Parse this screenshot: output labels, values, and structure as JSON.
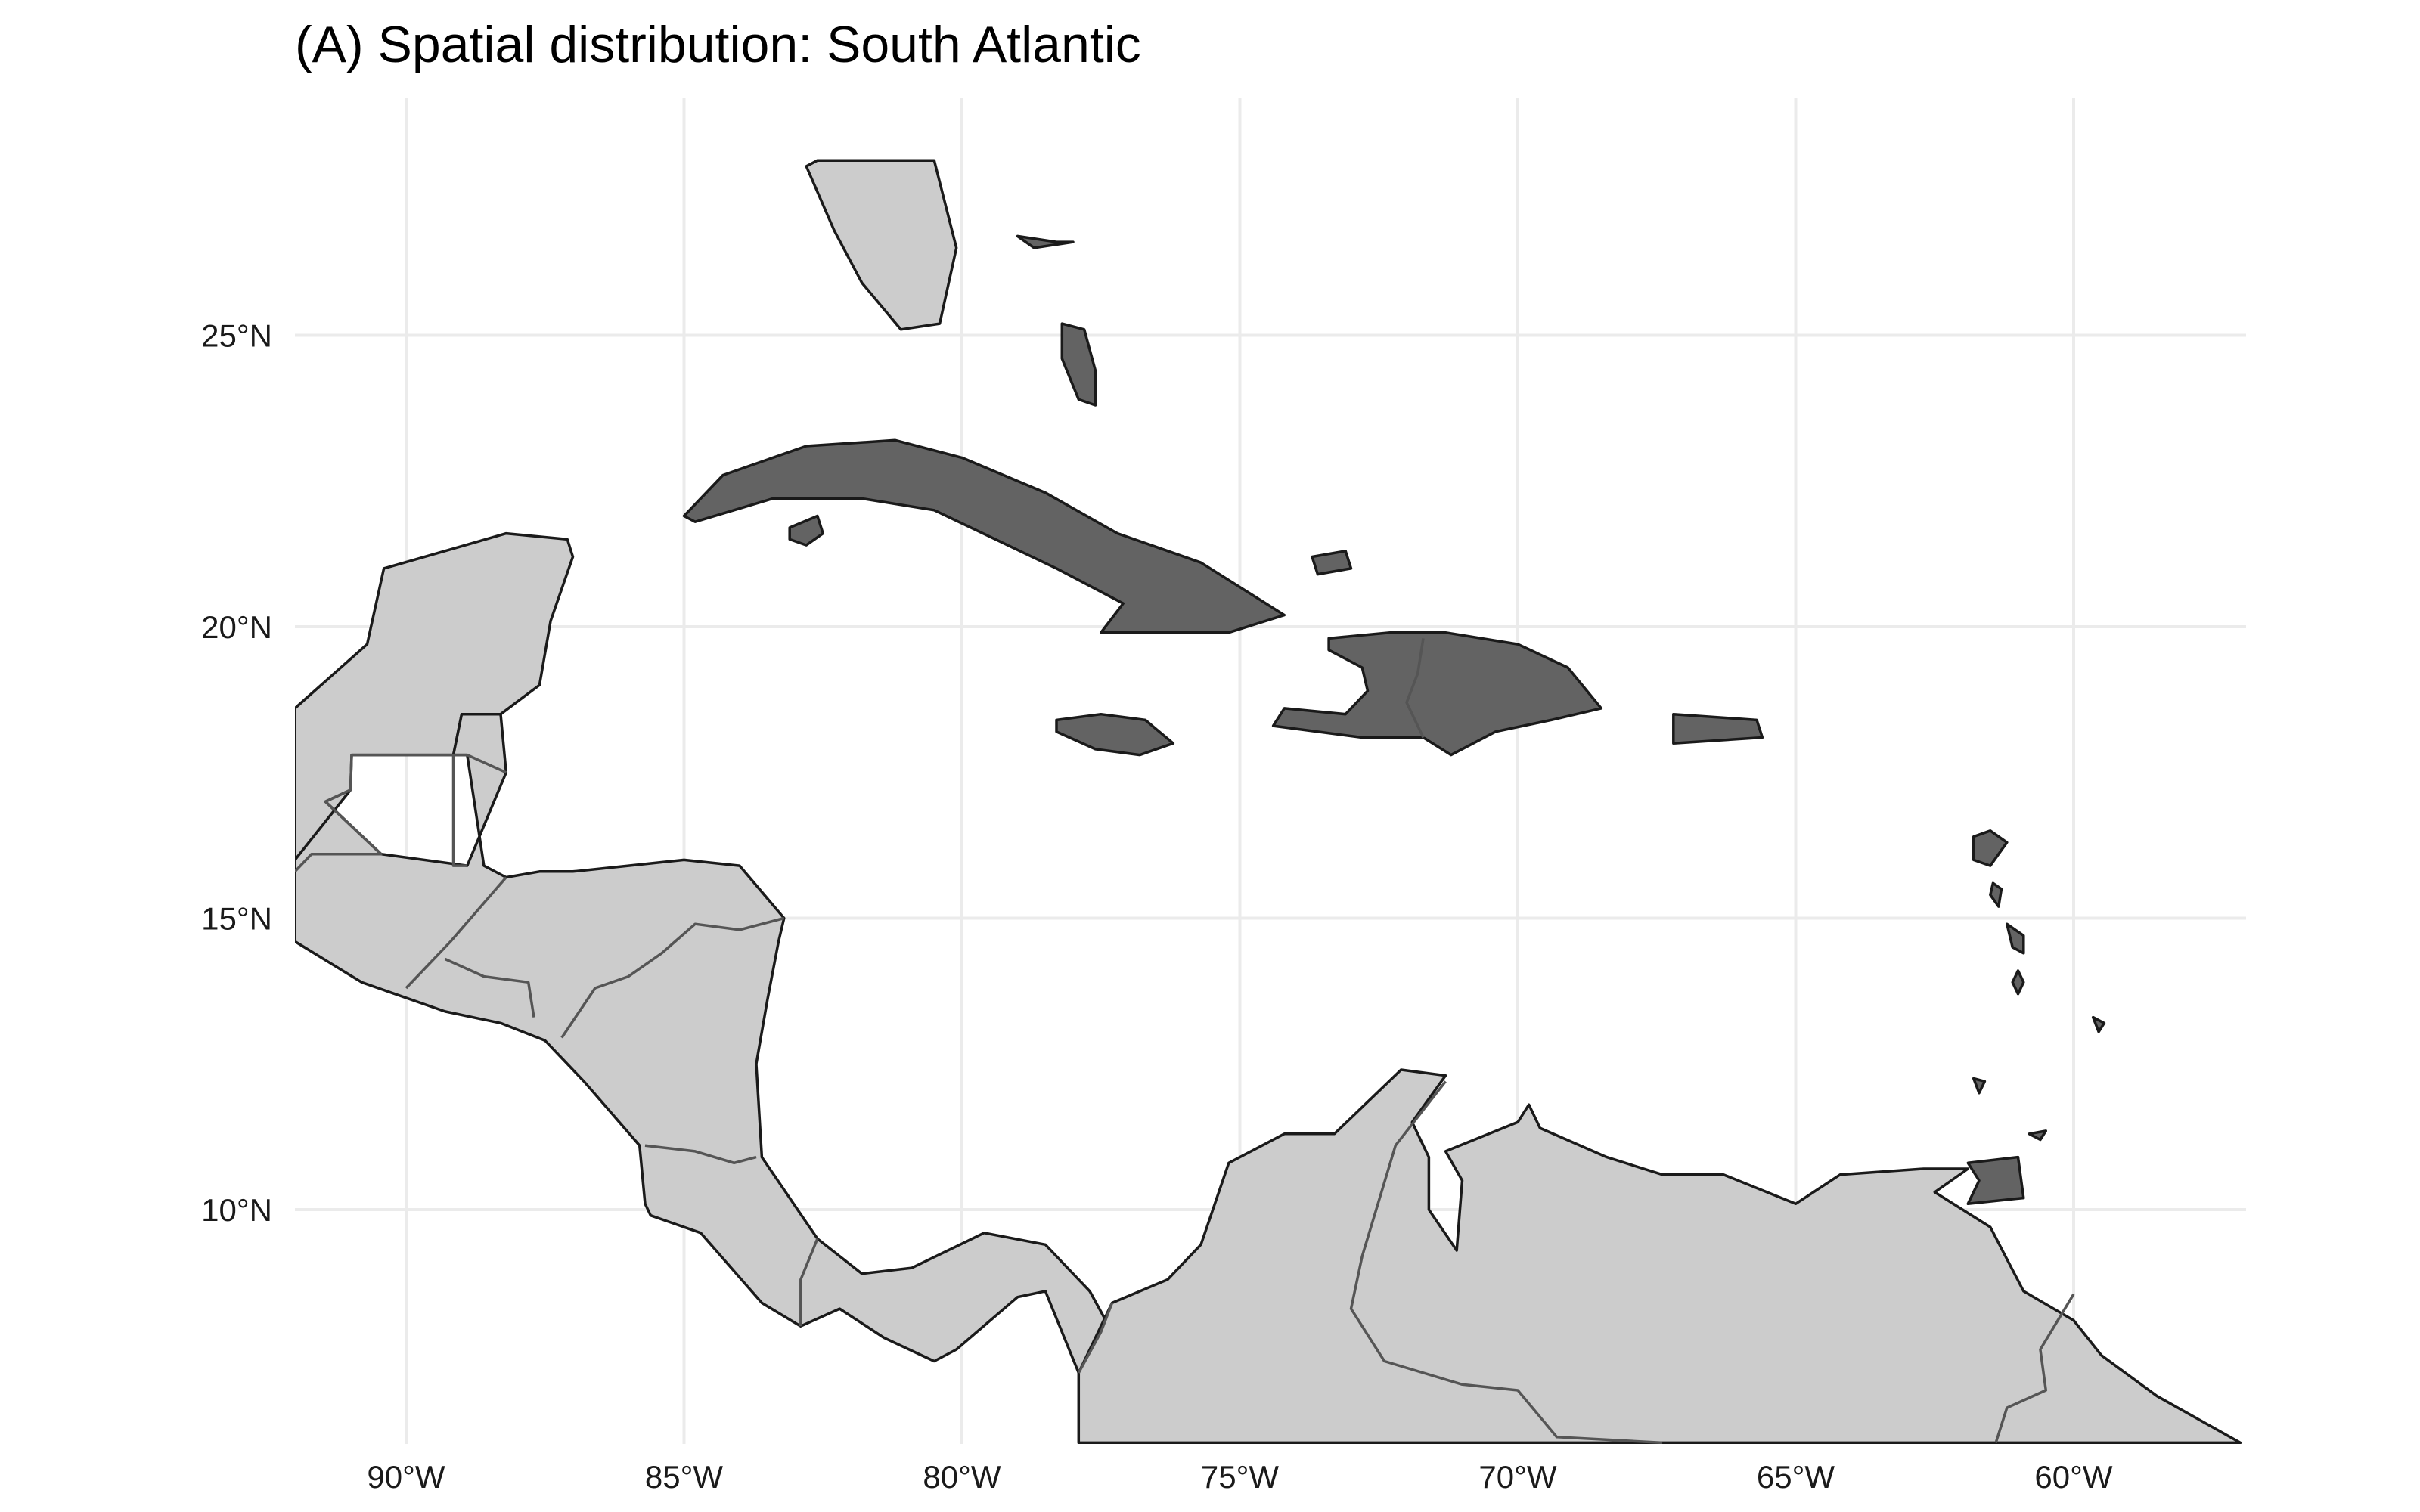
{
  "title": "(A) Spatial distribution: South Atlantic",
  "map": {
    "projection": "longitude-latitude",
    "lon_range": [
      -92,
      -57
    ],
    "lat_range": [
      6,
      28
    ],
    "grid": true,
    "lon_ticks": [
      {
        "value": -90,
        "label": "90°W"
      },
      {
        "value": -85,
        "label": "85°W"
      },
      {
        "value": -80,
        "label": "80°W"
      },
      {
        "value": -75,
        "label": "75°W"
      },
      {
        "value": -70,
        "label": "70°W"
      },
      {
        "value": -65,
        "label": "65°W"
      },
      {
        "value": -60,
        "label": "60°W"
      }
    ],
    "lat_ticks": [
      {
        "value": 25,
        "label": "25°N"
      },
      {
        "value": 20,
        "label": "20°N"
      },
      {
        "value": 15,
        "label": "15°N"
      },
      {
        "value": 10,
        "label": "10°N"
      }
    ],
    "colors": {
      "highlight": "#636363",
      "context": "#cccccc",
      "outline": "#1a1a1a",
      "grid": "#ebebeb",
      "background": "#ffffff"
    },
    "highlighted_regions": [
      {
        "id": "cuba",
        "name": "Cuba",
        "outline": [
          [
            -85,
            21.9
          ],
          [
            -84.3,
            22.6
          ],
          [
            -82.8,
            23.1
          ],
          [
            -81.2,
            23.2
          ],
          [
            -80,
            22.9
          ],
          [
            -78.5,
            22.3
          ],
          [
            -77.2,
            21.6
          ],
          [
            -75.7,
            21.1
          ],
          [
            -74.2,
            20.2
          ],
          [
            -75.2,
            19.9
          ],
          [
            -77.5,
            19.9
          ],
          [
            -77.1,
            20.4
          ],
          [
            -78.3,
            21
          ],
          [
            -80.5,
            22
          ],
          [
            -81.8,
            22.2
          ],
          [
            -83.4,
            22.2
          ],
          [
            -84.8,
            21.8
          ]
        ]
      },
      {
        "id": "isla-de-la-juventud",
        "name": "Isla de la Juventud",
        "outline": [
          [
            -83.1,
            21.7
          ],
          [
            -82.6,
            21.9
          ],
          [
            -82.5,
            21.6
          ],
          [
            -82.8,
            21.4
          ],
          [
            -83.1,
            21.5
          ]
        ]
      },
      {
        "id": "jamaica",
        "name": "Jamaica",
        "outline": [
          [
            -78.3,
            18.4
          ],
          [
            -77.5,
            18.5
          ],
          [
            -76.7,
            18.4
          ],
          [
            -76.2,
            18
          ],
          [
            -76.8,
            17.8
          ],
          [
            -77.6,
            17.9
          ],
          [
            -78.3,
            18.2
          ]
        ]
      },
      {
        "id": "hispaniola",
        "name": "Hispaniola",
        "outline": [
          [
            -73.4,
            19.8
          ],
          [
            -72.3,
            19.9
          ],
          [
            -71.3,
            19.9
          ],
          [
            -70,
            19.7
          ],
          [
            -69.1,
            19.3
          ],
          [
            -68.5,
            18.6
          ],
          [
            -69.4,
            18.4
          ],
          [
            -70.4,
            18.2
          ],
          [
            -71.2,
            17.8
          ],
          [
            -71.7,
            18.1
          ],
          [
            -72.8,
            18.1
          ],
          [
            -74.4,
            18.3
          ],
          [
            -74.2,
            18.6
          ],
          [
            -73.1,
            18.5
          ],
          [
            -72.7,
            18.9
          ],
          [
            -72.8,
            19.3
          ],
          [
            -73.4,
            19.6
          ]
        ]
      },
      {
        "id": "puerto-rico",
        "name": "Puerto Rico",
        "outline": [
          [
            -67.2,
            18.5
          ],
          [
            -65.7,
            18.4
          ],
          [
            -65.6,
            18.1
          ],
          [
            -67.2,
            18
          ]
        ]
      },
      {
        "id": "andros-bahamas",
        "name": "Andros (Bahamas)",
        "outline": [
          [
            -78.2,
            25.2
          ],
          [
            -77.8,
            25.1
          ],
          [
            -77.6,
            24.4
          ],
          [
            -77.6,
            23.8
          ],
          [
            -77.9,
            23.9
          ],
          [
            -78.2,
            24.6
          ]
        ]
      },
      {
        "id": "grand-bahama",
        "name": "Grand Bahama",
        "outline": [
          [
            -79,
            26.7
          ],
          [
            -78.3,
            26.6
          ],
          [
            -78,
            26.6
          ],
          [
            -78.7,
            26.5
          ]
        ]
      },
      {
        "id": "great-inagua",
        "name": "Great Inagua",
        "outline": [
          [
            -73.7,
            21.2
          ],
          [
            -73.1,
            21.3
          ],
          [
            -73,
            21
          ],
          [
            -73.6,
            20.9
          ]
        ]
      },
      {
        "id": "trinidad",
        "name": "Trinidad",
        "outline": [
          [
            -61.9,
            10.8
          ],
          [
            -61,
            10.9
          ],
          [
            -60.9,
            10.2
          ],
          [
            -61.9,
            10.1
          ],
          [
            -61.7,
            10.5
          ]
        ]
      },
      {
        "id": "tobago",
        "name": "Tobago",
        "outline": [
          [
            -60.8,
            11.3
          ],
          [
            -60.5,
            11.35
          ],
          [
            -60.6,
            11.2
          ]
        ]
      },
      {
        "id": "guadeloupe",
        "name": "Guadeloupe",
        "outline": [
          [
            -61.8,
            16.4
          ],
          [
            -61.5,
            16.5
          ],
          [
            -61.2,
            16.3
          ],
          [
            -61.5,
            15.9
          ],
          [
            -61.8,
            16
          ]
        ]
      },
      {
        "id": "martinique",
        "name": "Martinique",
        "outline": [
          [
            -61.2,
            14.9
          ],
          [
            -60.9,
            14.7
          ],
          [
            -60.9,
            14.4
          ],
          [
            -61.1,
            14.5
          ]
        ]
      },
      {
        "id": "dominica",
        "name": "Dominica",
        "outline": [
          [
            -61.45,
            15.6
          ],
          [
            -61.3,
            15.5
          ],
          [
            -61.35,
            15.2
          ],
          [
            -61.5,
            15.4
          ]
        ]
      },
      {
        "id": "st-lucia",
        "name": "St Lucia",
        "outline": [
          [
            -61,
            14.1
          ],
          [
            -60.9,
            13.9
          ],
          [
            -61,
            13.7
          ],
          [
            -61.1,
            13.9
          ]
        ]
      },
      {
        "id": "barbados",
        "name": "Barbados",
        "outline": [
          [
            -59.65,
            13.3
          ],
          [
            -59.45,
            13.2
          ],
          [
            -59.55,
            13.05
          ]
        ]
      },
      {
        "id": "grenada",
        "name": "Grenada",
        "outline": [
          [
            -61.8,
            12.25
          ],
          [
            -61.6,
            12.2
          ],
          [
            -61.7,
            12
          ]
        ]
      }
    ],
    "context_regions": [
      {
        "id": "florida",
        "name": "Florida",
        "outline": [
          [
            -82.6,
            28
          ],
          [
            -81.6,
            28
          ],
          [
            -80.5,
            28
          ],
          [
            -80.1,
            26.5
          ],
          [
            -80.4,
            25.2
          ],
          [
            -81.1,
            25.1
          ],
          [
            -81.8,
            25.9
          ],
          [
            -82.3,
            26.8
          ],
          [
            -82.8,
            27.9
          ]
        ]
      },
      {
        "id": "mexico",
        "name": "Mexico",
        "outline": [
          [
            -92,
            16
          ],
          [
            -92,
            18.6
          ],
          [
            -90.7,
            19.7
          ],
          [
            -90.4,
            21
          ],
          [
            -88.2,
            21.6
          ],
          [
            -87.1,
            21.5
          ],
          [
            -87,
            21.2
          ],
          [
            -87.4,
            20.1
          ],
          [
            -87.6,
            19
          ],
          [
            -88.3,
            18.5
          ],
          [
            -89,
            18.5
          ],
          [
            -89.15,
            17.8
          ],
          [
            -90.98,
            17.8
          ],
          [
            -91,
            17.2
          ],
          [
            -91.45,
            17
          ],
          [
            -90.45,
            16.1
          ],
          [
            -91.7,
            16.1
          ],
          [
            -92,
            14.6
          ]
        ]
      },
      {
        "id": "central-america",
        "name": "Central America",
        "outline": [
          [
            -92,
            14.6
          ],
          [
            -90.8,
            13.9
          ],
          [
            -89.3,
            13.4
          ],
          [
            -88.3,
            13.2
          ],
          [
            -87.5,
            12.9
          ],
          [
            -86.8,
            12.2
          ],
          [
            -85.8,
            11.1
          ],
          [
            -85.7,
            10.1
          ],
          [
            -85.6,
            9.9
          ],
          [
            -84.7,
            9.6
          ],
          [
            -83.6,
            8.4
          ],
          [
            -82.9,
            8
          ],
          [
            -82.2,
            8.3
          ],
          [
            -81.4,
            7.8
          ],
          [
            -80.5,
            7.4
          ],
          [
            -80.1,
            7.6
          ],
          [
            -79,
            8.5
          ],
          [
            -78.5,
            8.6
          ],
          [
            -77.9,
            7.2
          ],
          [
            -77.3,
            7.9
          ],
          [
            -77.7,
            8.6
          ],
          [
            -78.5,
            9.4
          ],
          [
            -79.6,
            9.6
          ],
          [
            -80.9,
            9
          ],
          [
            -81.8,
            8.9
          ],
          [
            -82.6,
            9.5
          ],
          [
            -83.6,
            10.9
          ],
          [
            -83.7,
            12.5
          ],
          [
            -83.5,
            13.6
          ],
          [
            -83.3,
            14.6
          ],
          [
            -83.2,
            15
          ],
          [
            -84,
            15.9
          ],
          [
            -85,
            16
          ],
          [
            -86,
            15.9
          ],
          [
            -87,
            15.8
          ],
          [
            -87.6,
            15.8
          ],
          [
            -88.2,
            15.7
          ],
          [
            -88.6,
            15.9
          ],
          [
            -88.9,
            17.8
          ],
          [
            -89.15,
            17.8
          ],
          [
            -89,
            18.5
          ],
          [
            -88.3,
            18.5
          ],
          [
            -88.2,
            17.5
          ],
          [
            -88.9,
            15.9
          ],
          [
            -90.45,
            16.1
          ],
          [
            -91.45,
            17
          ],
          [
            -91,
            17.2
          ],
          [
            -92,
            16
          ]
        ]
      },
      {
        "id": "northern-south-america",
        "name": "Colombia and Venezuela",
        "outline": [
          [
            -77.9,
            6
          ],
          [
            -77.9,
            7.2
          ],
          [
            -77.3,
            8.4
          ],
          [
            -76.3,
            8.8
          ],
          [
            -75.7,
            9.4
          ],
          [
            -75.2,
            10.8
          ],
          [
            -74.2,
            11.3
          ],
          [
            -73.3,
            11.3
          ],
          [
            -72.1,
            12.4
          ],
          [
            -71.3,
            12.3
          ],
          [
            -71.9,
            11.5
          ],
          [
            -71.6,
            10.9
          ],
          [
            -71.6,
            10
          ],
          [
            -71.1,
            9.3
          ],
          [
            -71,
            10.5
          ],
          [
            -71.3,
            11
          ],
          [
            -70,
            11.5
          ],
          [
            -69.8,
            11.8
          ],
          [
            -69.6,
            11.4
          ],
          [
            -68.4,
            10.9
          ],
          [
            -67.4,
            10.6
          ],
          [
            -66.3,
            10.6
          ],
          [
            -65,
            10.1
          ],
          [
            -64.2,
            10.6
          ],
          [
            -62.7,
            10.7
          ],
          [
            -61.9,
            10.7
          ],
          [
            -62.5,
            10.3
          ],
          [
            -61.5,
            9.7
          ],
          [
            -60.9,
            8.6
          ],
          [
            -60,
            8.1
          ],
          [
            -59.5,
            7.5
          ],
          [
            -58.5,
            6.8
          ],
          [
            -57,
            6
          ]
        ]
      }
    ],
    "borders": [
      {
        "id": "mexico-belize-guatemala",
        "name": "Mexico–Belize–Guatemala border",
        "points": [
          [
            -88.2,
            17.5
          ],
          [
            -88.9,
            17.8
          ],
          [
            -90.98,
            17.8
          ],
          [
            -91,
            17.2
          ],
          [
            -91.45,
            17
          ],
          [
            -90.45,
            16.1
          ],
          [
            -91.7,
            16.1
          ],
          [
            -92,
            15.8
          ]
        ]
      },
      {
        "id": "belize-guatemala",
        "name": "Belize–Guatemala border",
        "points": [
          [
            -89.15,
            17.8
          ],
          [
            -89.15,
            15.9
          ],
          [
            -88.9,
            15.9
          ]
        ]
      },
      {
        "id": "guatemala-honduras-elsalvador",
        "name": "Guatemala–Honduras–El Salvador border",
        "points": [
          [
            -88.2,
            15.7
          ],
          [
            -89.2,
            14.6
          ],
          [
            -89.4,
            14.4
          ],
          [
            -90,
            13.8
          ]
        ]
      },
      {
        "id": "honduras-elsalvador",
        "name": "Honduras–El Salvador border",
        "points": [
          [
            -89.3,
            14.3
          ],
          [
            -88.6,
            14
          ],
          [
            -87.8,
            13.9
          ],
          [
            -87.7,
            13.3
          ]
        ]
      },
      {
        "id": "honduras-nicaragua",
        "name": "Honduras–Nicaragua border",
        "points": [
          [
            -87.2,
            12.95
          ],
          [
            -86.6,
            13.8
          ],
          [
            -86,
            14
          ],
          [
            -85.4,
            14.4
          ],
          [
            -84.8,
            14.9
          ],
          [
            -84,
            14.8
          ],
          [
            -83.2,
            15
          ]
        ]
      },
      {
        "id": "nicaragua-costarica",
        "name": "Nicaragua–Costa Rica border",
        "points": [
          [
            -85.7,
            11.1
          ],
          [
            -84.8,
            11
          ],
          [
            -84.1,
            10.8
          ],
          [
            -83.7,
            10.9
          ]
        ]
      },
      {
        "id": "costarica-panama",
        "name": "Costa Rica–Panama border",
        "points": [
          [
            -82.9,
            8
          ],
          [
            -82.9,
            8.8
          ],
          [
            -82.6,
            9.5
          ]
        ]
      },
      {
        "id": "panama-colombia",
        "name": "Panama–Colombia border",
        "points": [
          [
            -77.9,
            7.2
          ],
          [
            -77.5,
            7.9
          ],
          [
            -77.3,
            8.4
          ]
        ]
      },
      {
        "id": "colombia-venezuela",
        "name": "Colombia–Venezuela border",
        "points": [
          [
            -71.3,
            12.2
          ],
          [
            -72.2,
            11.1
          ],
          [
            -72.8,
            9.2
          ],
          [
            -73,
            8.3
          ],
          [
            -72.4,
            7.4
          ],
          [
            -71,
            7
          ],
          [
            -70,
            6.9
          ],
          [
            -69.3,
            6.1
          ],
          [
            -67.4,
            6
          ]
        ]
      },
      {
        "id": "venezuela-guyana",
        "name": "Venezuela–Guyana border",
        "points": [
          [
            -60,
            8.55
          ],
          [
            -60.6,
            7.6
          ],
          [
            -60.5,
            6.9
          ],
          [
            -61.2,
            6.6
          ],
          [
            -61.4,
            6
          ]
        ]
      }
    ]
  }
}
